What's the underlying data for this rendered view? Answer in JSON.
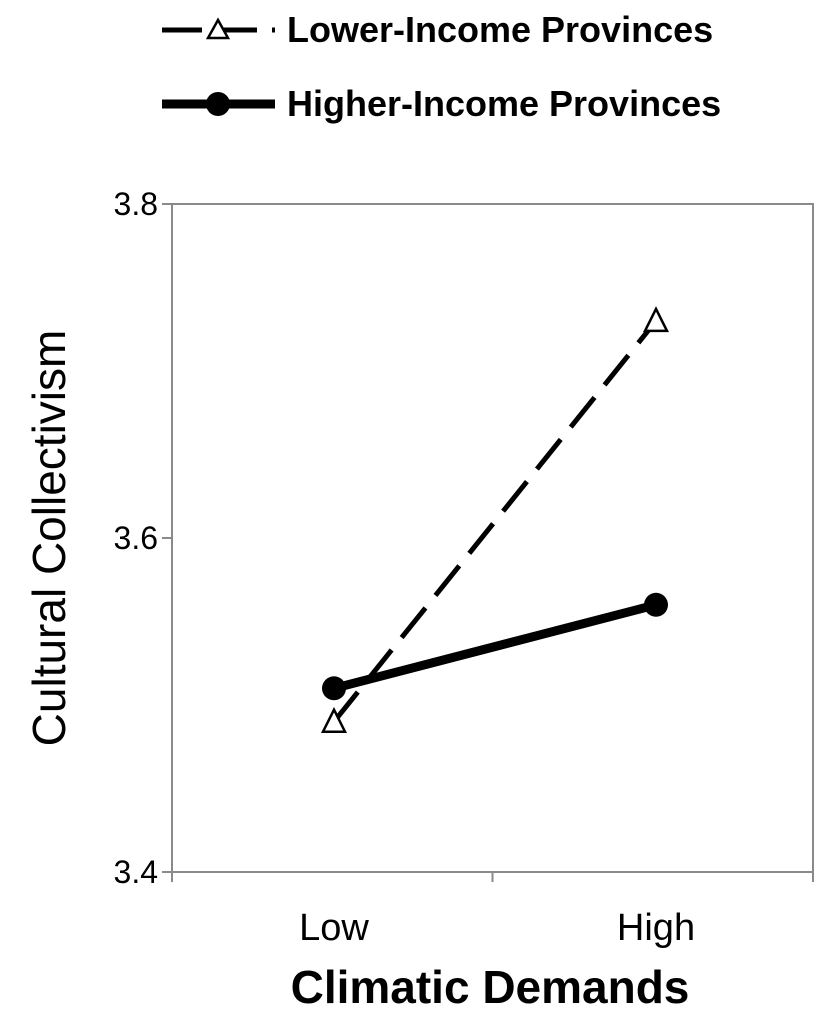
{
  "chart_data": {
    "type": "line",
    "title": "",
    "xlabel": "Climatic Demands",
    "ylabel": "Cultural Collectivism",
    "categories": [
      "Low",
      "High"
    ],
    "ylim": [
      3.4,
      3.8
    ],
    "yticks": [
      3.4,
      3.6,
      3.8
    ],
    "ytick_labels": [
      "3.4",
      "3.6",
      "3.8"
    ],
    "grid": false,
    "legend_position": "top",
    "series": [
      {
        "name": "Lower-Income Provinces",
        "values": [
          3.49,
          3.73
        ],
        "line_style": "dashed",
        "marker": "open-triangle",
        "color": "#000000"
      },
      {
        "name": "Higher-Income Provinces",
        "values": [
          3.51,
          3.56
        ],
        "line_style": "solid-bold",
        "marker": "filled-circle",
        "color": "#000000"
      }
    ]
  }
}
